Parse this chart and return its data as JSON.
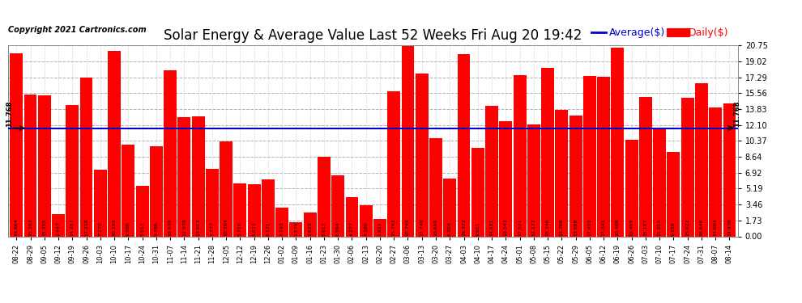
{
  "title": "Solar Energy & Average Value Last 52 Weeks Fri Aug 20 19:42",
  "copyright": "Copyright 2021 Cartronics.com",
  "average_line": 11.768,
  "average_label": "Average($)",
  "daily_label": "Daily($)",
  "bar_color": "#ff0000",
  "avg_line_color": "#0000cc",
  "background_color": "#ffffff",
  "plot_bg_color": "#ffffff",
  "grid_color": "#aaaaaa",
  "ylim_max": 20.75,
  "yticks": [
    0.0,
    1.73,
    3.46,
    5.19,
    6.92,
    8.64,
    10.37,
    12.1,
    13.83,
    15.56,
    17.29,
    19.02,
    20.75
  ],
  "categories": [
    "08-22",
    "08-29",
    "09-05",
    "09-12",
    "09-19",
    "09-26",
    "10-03",
    "10-10",
    "10-17",
    "10-24",
    "10-31",
    "11-07",
    "11-14",
    "11-21",
    "11-28",
    "12-05",
    "12-12",
    "12-19",
    "12-26",
    "01-02",
    "01-09",
    "01-16",
    "01-23",
    "01-30",
    "02-06",
    "02-13",
    "02-20",
    "02-27",
    "03-06",
    "03-13",
    "03-20",
    "03-27",
    "04-03",
    "04-10",
    "04-17",
    "04-24",
    "05-01",
    "05-08",
    "05-15",
    "05-22",
    "05-29",
    "06-05",
    "06-12",
    "06-19",
    "06-26",
    "07-03",
    "07-10",
    "07-17",
    "07-24",
    "07-31",
    "08-07",
    "08-14"
  ],
  "values": [
    19.864,
    15.383,
    15.355,
    2.447,
    14.257,
    17.218,
    7.278,
    20.195,
    9.986,
    5.517,
    9.786,
    18.039,
    12.978,
    13.013,
    7.377,
    10.304,
    5.716,
    5.674,
    6.171,
    3.143,
    1.579,
    2.622,
    8.617,
    6.594,
    4.277,
    3.38,
    1.921,
    15.792,
    20.745,
    17.74,
    10.695,
    6.304,
    19.772,
    9.651,
    14.181,
    12.543,
    17.521,
    12.177,
    18.346,
    13.766,
    13.088,
    17.452,
    17.341,
    20.468,
    10.459,
    15.187,
    11.814,
    9.159,
    15.022,
    16.646,
    14.004,
    14.47
  ],
  "avg_label_text": "11.768",
  "title_fontsize": 12,
  "copyright_fontsize": 7,
  "bar_label_fontsize": 4.5,
  "xtick_fontsize": 6,
  "ytick_fontsize": 7,
  "legend_fontsize": 9
}
